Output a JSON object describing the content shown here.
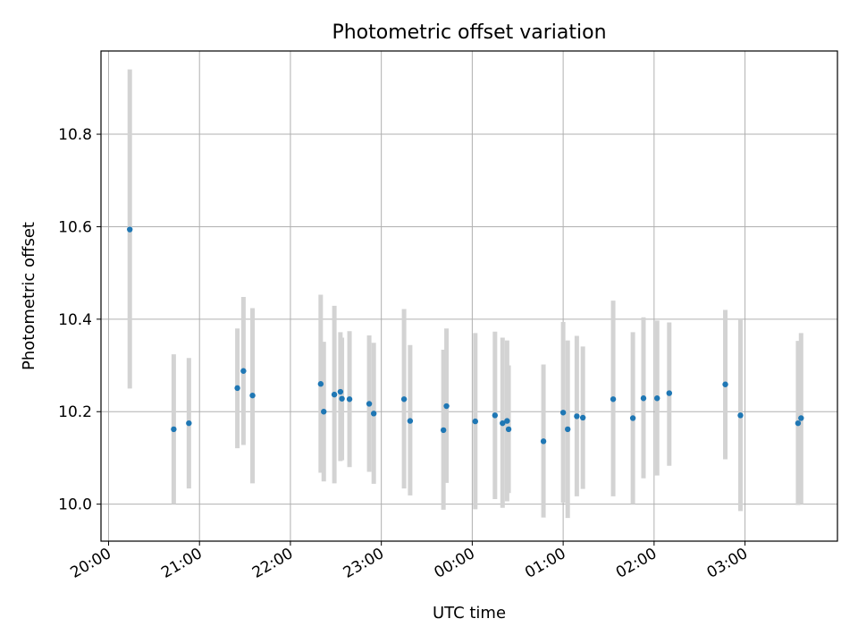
{
  "chart_data": {
    "type": "scatter",
    "title": "Photometric offset variation",
    "xlabel": "UTC time",
    "ylabel": "Photometric offset",
    "x_tick_labels": [
      "20:00",
      "21:00",
      "22:00",
      "23:00",
      "00:00",
      "01:00",
      "02:00",
      "03:00"
    ],
    "y_tick_labels": [
      "10.0",
      "10.2",
      "10.4",
      "10.6",
      "10.8"
    ],
    "y_ticks": [
      10.0,
      10.2,
      10.4,
      10.6,
      10.8
    ],
    "xlim": [
      "19:55",
      "04:01"
    ],
    "ylim": [
      9.92,
      10.98
    ],
    "grid": true,
    "marker_color": "#1f77b4",
    "errorbar_color": "#d3d3d3",
    "points": [
      {
        "time": "20:14",
        "offset": 10.594,
        "low": 10.25,
        "high": 10.94
      },
      {
        "time": "20:43",
        "offset": 10.162,
        "low": 10.0,
        "high": 10.324
      },
      {
        "time": "20:53",
        "offset": 10.175,
        "low": 10.034,
        "high": 10.316
      },
      {
        "time": "21:25",
        "offset": 10.251,
        "low": 10.121,
        "high": 10.38
      },
      {
        "time": "21:29",
        "offset": 10.288,
        "low": 10.128,
        "high": 10.448
      },
      {
        "time": "21:35",
        "offset": 10.235,
        "low": 10.045,
        "high": 10.424
      },
      {
        "time": "22:20",
        "offset": 10.26,
        "low": 10.068,
        "high": 10.453
      },
      {
        "time": "22:22",
        "offset": 10.2,
        "low": 10.049,
        "high": 10.351
      },
      {
        "time": "22:29",
        "offset": 10.237,
        "low": 10.045,
        "high": 10.429
      },
      {
        "time": "22:33",
        "offset": 10.243,
        "low": 10.093,
        "high": 10.372
      },
      {
        "time": "22:34",
        "offset": 10.228,
        "low": 10.095,
        "high": 10.36
      },
      {
        "time": "22:39",
        "offset": 10.227,
        "low": 10.08,
        "high": 10.374
      },
      {
        "time": "22:52",
        "offset": 10.217,
        "low": 10.07,
        "high": 10.365
      },
      {
        "time": "22:55",
        "offset": 10.196,
        "low": 10.044,
        "high": 10.349
      },
      {
        "time": "23:15",
        "offset": 10.227,
        "low": 10.034,
        "high": 10.422
      },
      {
        "time": "23:19",
        "offset": 10.18,
        "low": 10.019,
        "high": 10.344
      },
      {
        "time": "23:41",
        "offset": 10.16,
        "low": 9.988,
        "high": 10.334
      },
      {
        "time": "23:43",
        "offset": 10.212,
        "low": 10.046,
        "high": 10.38
      },
      {
        "time": "00:02",
        "offset": 10.179,
        "low": 9.989,
        "high": 10.37
      },
      {
        "time": "00:15",
        "offset": 10.192,
        "low": 10.011,
        "high": 10.373
      },
      {
        "time": "00:20",
        "offset": 10.175,
        "low": 9.992,
        "high": 10.36
      },
      {
        "time": "00:23",
        "offset": 10.18,
        "low": 10.006,
        "high": 10.354
      },
      {
        "time": "00:24",
        "offset": 10.162,
        "low": 10.024,
        "high": 10.3
      },
      {
        "time": "00:47",
        "offset": 10.136,
        "low": 9.971,
        "high": 10.302
      },
      {
        "time": "01:00",
        "offset": 10.198,
        "low": 10.003,
        "high": 10.394
      },
      {
        "time": "01:03",
        "offset": 10.162,
        "low": 9.97,
        "high": 10.354
      },
      {
        "time": "01:09",
        "offset": 10.19,
        "low": 10.017,
        "high": 10.364
      },
      {
        "time": "01:13",
        "offset": 10.187,
        "low": 10.033,
        "high": 10.341
      },
      {
        "time": "01:33",
        "offset": 10.227,
        "low": 10.017,
        "high": 10.44
      },
      {
        "time": "01:46",
        "offset": 10.186,
        "low": 10.0,
        "high": 10.372
      },
      {
        "time": "01:53",
        "offset": 10.229,
        "low": 10.056,
        "high": 10.404
      },
      {
        "time": "02:02",
        "offset": 10.229,
        "low": 10.062,
        "high": 10.397
      },
      {
        "time": "02:10",
        "offset": 10.24,
        "low": 10.083,
        "high": 10.393
      },
      {
        "time": "02:47",
        "offset": 10.259,
        "low": 10.097,
        "high": 10.42
      },
      {
        "time": "02:57",
        "offset": 10.192,
        "low": 9.985,
        "high": 10.402
      },
      {
        "time": "03:35",
        "offset": 10.175,
        "low": 9.998,
        "high": 10.353
      },
      {
        "time": "03:37",
        "offset": 10.186,
        "low": 10.0,
        "high": 10.37
      }
    ]
  }
}
